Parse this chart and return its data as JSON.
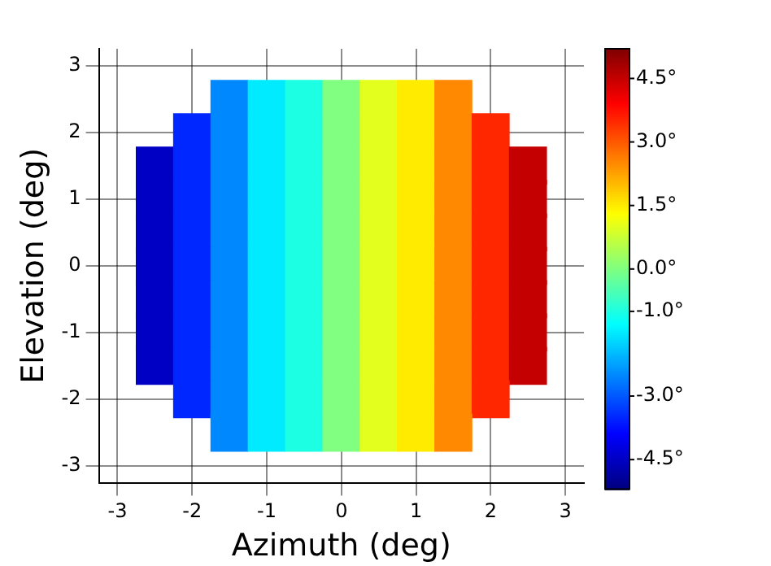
{
  "chart_data": {
    "type": "heatmap",
    "xlabel": "Azimuth (deg)",
    "ylabel": "Elevation (deg)",
    "grid": true,
    "categories": [
      "-3",
      null,
      "-2",
      null,
      "-1",
      null,
      "0",
      null,
      "1",
      null,
      "2",
      null,
      "3"
    ],
    "y_categories": [
      "3",
      null,
      "2",
      null,
      "1",
      null,
      "0",
      null,
      "-1",
      null,
      "-2",
      null,
      "-3"
    ],
    "cells": [
      [
        null,
        null,
        null,
        null,
        null,
        null,
        null,
        null,
        null,
        null,
        null,
        null,
        null
      ],
      [
        null,
        null,
        null,
        -2.5,
        -1.5,
        -1,
        0,
        1,
        1.5,
        2.5,
        null,
        null,
        null
      ],
      [
        null,
        null,
        -3.5,
        -2.5,
        -1.5,
        -1,
        0,
        1,
        1.5,
        2.5,
        3.5,
        null,
        null
      ],
      [
        null,
        -4.5,
        -3.5,
        -2.5,
        -1.5,
        -1,
        0,
        1,
        1.5,
        2.5,
        3.5,
        4.5,
        null
      ],
      [
        null,
        -4.5,
        -3.5,
        -2.5,
        -1.5,
        -1,
        0,
        1,
        1.5,
        2.5,
        3.5,
        4.5,
        null
      ],
      [
        null,
        -4.5,
        -3.5,
        -2.5,
        -1.5,
        -1,
        0,
        1,
        1.5,
        2.5,
        3.5,
        4.5,
        null
      ],
      [
        null,
        -4.5,
        -3.5,
        -2.5,
        -1.5,
        -1,
        0,
        1,
        1.5,
        2.5,
        3.5,
        4.5,
        null
      ],
      [
        null,
        -4.5,
        -3.5,
        -2.5,
        -1.5,
        -1,
        0,
        1,
        1.5,
        2.5,
        3.5,
        4.5,
        null
      ],
      [
        null,
        -4.5,
        -3.5,
        -2.5,
        -1.5,
        -1,
        0,
        1,
        1.5,
        2.5,
        3.5,
        4.5,
        null
      ],
      [
        null,
        -4.5,
        -3.5,
        -2.5,
        -1.5,
        -1,
        0,
        1,
        1.5,
        2.5,
        3.5,
        4.5,
        null
      ],
      [
        null,
        null,
        -3.5,
        -2.5,
        -1.5,
        -1,
        0,
        1,
        1.5,
        2.5,
        3.5,
        null,
        null
      ],
      [
        null,
        null,
        null,
        -2.5,
        -1.5,
        -1,
        0,
        1,
        1.5,
        2.5,
        null,
        null,
        null
      ],
      [
        null,
        null,
        null,
        null,
        null,
        null,
        null,
        null,
        null,
        null,
        null,
        null,
        null
      ]
    ],
    "clim": [
      -5.2,
      5.2
    ],
    "cticks": [
      {
        "value": 4.5,
        "label": "4.5°"
      },
      {
        "value": 3,
        "label": "3.0°"
      },
      {
        "value": 1.5,
        "label": "1.5°"
      },
      {
        "value": 0,
        "label": "0.0°"
      },
      {
        "value": -1,
        "label": "-1.0°"
      },
      {
        "value": -3,
        "label": "-3.0°"
      },
      {
        "value": -4.5,
        "label": "-4.5°"
      }
    ]
  }
}
